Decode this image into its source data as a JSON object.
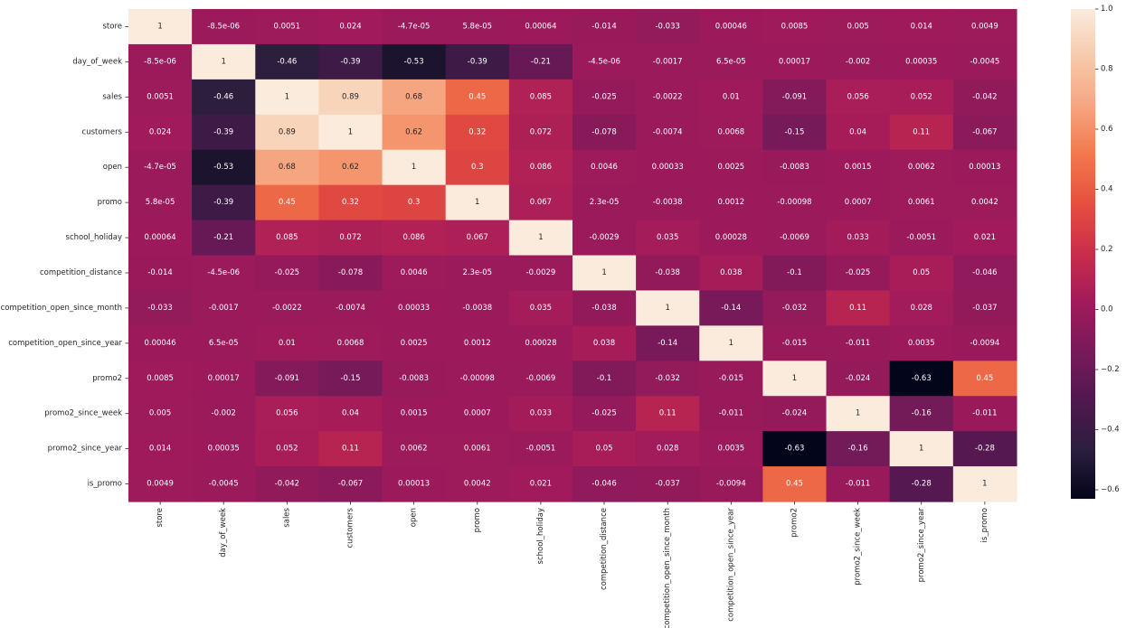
{
  "chart_data": {
    "type": "heatmap",
    "title": "",
    "xlabel": "",
    "ylabel": "",
    "labels": [
      "store",
      "day_of_week",
      "sales",
      "customers",
      "open",
      "promo",
      "school_holiday",
      "competition_distance",
      "competition_open_since_month",
      "competition_open_since_year",
      "promo2",
      "promo2_since_week",
      "promo2_since_year",
      "is_promo"
    ],
    "value_labels": [
      [
        "1",
        "-8.5e-06",
        "0.0051",
        "0.024",
        "-4.7e-05",
        "5.8e-05",
        "0.00064",
        "-0.014",
        "-0.033",
        "0.00046",
        "0.0085",
        "0.005",
        "0.014",
        "0.0049"
      ],
      [
        "-8.5e-06",
        "1",
        "-0.46",
        "-0.39",
        "-0.53",
        "-0.39",
        "-0.21",
        "-4.5e-06",
        "-0.0017",
        "6.5e-05",
        "0.00017",
        "-0.002",
        "0.00035",
        "-0.0045"
      ],
      [
        "0.0051",
        "-0.46",
        "1",
        "0.89",
        "0.68",
        "0.45",
        "0.085",
        "-0.025",
        "-0.0022",
        "0.01",
        "-0.091",
        "0.056",
        "0.052",
        "-0.042"
      ],
      [
        "0.024",
        "-0.39",
        "0.89",
        "1",
        "0.62",
        "0.32",
        "0.072",
        "-0.078",
        "-0.0074",
        "0.0068",
        "-0.15",
        "0.04",
        "0.11",
        "-0.067"
      ],
      [
        "-4.7e-05",
        "-0.53",
        "0.68",
        "0.62",
        "1",
        "0.3",
        "0.086",
        "0.0046",
        "0.00033",
        "0.0025",
        "-0.0083",
        "0.0015",
        "0.0062",
        "0.00013"
      ],
      [
        "5.8e-05",
        "-0.39",
        "0.45",
        "0.32",
        "0.3",
        "1",
        "0.067",
        "2.3e-05",
        "-0.0038",
        "0.0012",
        "-0.00098",
        "0.0007",
        "0.0061",
        "0.0042"
      ],
      [
        "0.00064",
        "-0.21",
        "0.085",
        "0.072",
        "0.086",
        "0.067",
        "1",
        "-0.0029",
        "0.035",
        "0.00028",
        "-0.0069",
        "0.033",
        "-0.0051",
        "0.021"
      ],
      [
        "-0.014",
        "-4.5e-06",
        "-0.025",
        "-0.078",
        "0.0046",
        "2.3e-05",
        "-0.0029",
        "1",
        "-0.038",
        "0.038",
        "-0.1",
        "-0.025",
        "0.05",
        "-0.046"
      ],
      [
        "-0.033",
        "-0.0017",
        "-0.0022",
        "-0.0074",
        "0.00033",
        "-0.0038",
        "0.035",
        "-0.038",
        "1",
        "-0.14",
        "-0.032",
        "0.11",
        "0.028",
        "-0.037"
      ],
      [
        "0.00046",
        "6.5e-05",
        "0.01",
        "0.0068",
        "0.0025",
        "0.0012",
        "0.00028",
        "0.038",
        "-0.14",
        "1",
        "-0.015",
        "-0.011",
        "0.0035",
        "-0.0094"
      ],
      [
        "0.0085",
        "0.00017",
        "-0.091",
        "-0.15",
        "-0.0083",
        "-0.00098",
        "-0.0069",
        "-0.1",
        "-0.032",
        "-0.015",
        "1",
        "-0.024",
        "-0.63",
        "0.45"
      ],
      [
        "0.005",
        "-0.002",
        "0.056",
        "0.04",
        "0.0015",
        "0.0007",
        "0.033",
        "-0.025",
        "0.11",
        "-0.011",
        "-0.024",
        "1",
        "-0.16",
        "-0.011"
      ],
      [
        "0.014",
        "0.00035",
        "0.052",
        "0.11",
        "0.0062",
        "0.0061",
        "-0.0051",
        "0.05",
        "0.028",
        "0.0035",
        "-0.63",
        "-0.16",
        "1",
        "-0.28"
      ],
      [
        "0.0049",
        "-0.0045",
        "-0.042",
        "-0.067",
        "0.00013",
        "0.0042",
        "0.021",
        "-0.046",
        "-0.037",
        "-0.0094",
        "0.45",
        "-0.011",
        "-0.28",
        "1"
      ]
    ],
    "vmin": -0.63,
    "vmax": 1.0,
    "colormap": "rocket",
    "colormap_stops": [
      "#03051a",
      "#2c1e3d",
      "#50184f",
      "#781a5a",
      "#a11a5b",
      "#c92d4b",
      "#e54f3f",
      "#f2774b",
      "#f6a47f",
      "#f7c9aa",
      "#faebdd"
    ],
    "colorbar": {
      "ticks": [
        1.0,
        0.8,
        0.6,
        0.4,
        0.2,
        0.0,
        -0.2,
        -0.4,
        -0.6
      ],
      "tick_labels": [
        "1.0",
        "0.8",
        "0.6",
        "0.4",
        "0.2",
        "0.0",
        "−0.2",
        "−0.4",
        "−0.6"
      ]
    },
    "text_color_dark": "#262626",
    "text_color_light": "#ffffff",
    "axis_text_color": "#262626"
  }
}
